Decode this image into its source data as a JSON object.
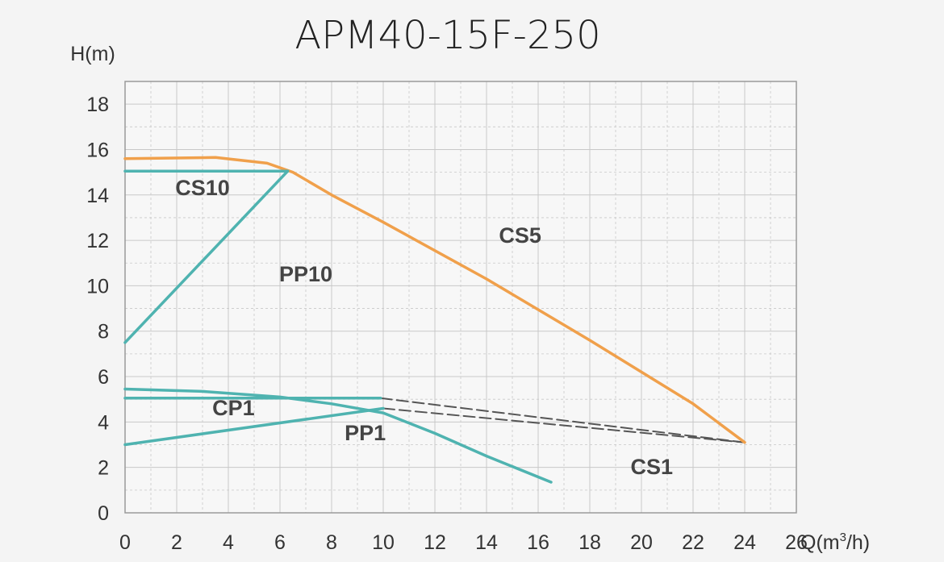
{
  "chart_data": {
    "type": "line",
    "title": "APM40-15F-250",
    "xlabel": "Q(m",
    "xlabel_sup": "3",
    "xlabel_end": "/h)",
    "ylabel": "H(m)",
    "xlim": [
      0,
      26
    ],
    "ylim": [
      0,
      19
    ],
    "xticks": [
      0,
      2,
      4,
      6,
      8,
      10,
      12,
      14,
      16,
      18,
      20,
      22,
      24,
      26
    ],
    "yticks": [
      0,
      2,
      4,
      6,
      8,
      10,
      12,
      14,
      16,
      18
    ],
    "minor_grid_step_x": 1,
    "minor_grid_step_y": 1,
    "grid": true,
    "colors": {
      "orange": "#f0a04b",
      "teal": "#4fb3b0",
      "dashed": "#555555",
      "grid": "#c8c8c8",
      "frame": "#9a9a9a"
    },
    "series": [
      {
        "name": "CS5",
        "color": "orange",
        "style": "solid",
        "points": [
          [
            0,
            15.6
          ],
          [
            3.5,
            15.65
          ],
          [
            5.5,
            15.4
          ],
          [
            6.5,
            15.0
          ],
          [
            8,
            14.0
          ],
          [
            10,
            12.8
          ],
          [
            14,
            10.3
          ],
          [
            18,
            7.6
          ],
          [
            22,
            4.8
          ],
          [
            24,
            3.1
          ]
        ]
      },
      {
        "name": "CS10",
        "color": "teal",
        "style": "solid",
        "points": [
          [
            0,
            15.05
          ],
          [
            6.3,
            15.05
          ]
        ]
      },
      {
        "name": "PP10",
        "color": "teal",
        "style": "solid",
        "points": [
          [
            0,
            7.5
          ],
          [
            6.3,
            15.05
          ]
        ]
      },
      {
        "name": "CP1",
        "color": "teal",
        "style": "solid",
        "points": [
          [
            0,
            5.05
          ],
          [
            9.9,
            5.05
          ]
        ]
      },
      {
        "name": "PP1",
        "color": "teal",
        "style": "solid",
        "points": [
          [
            0,
            3.0
          ],
          [
            10,
            4.6
          ]
        ]
      },
      {
        "name": "CS1",
        "color": "teal",
        "style": "solid",
        "points": [
          [
            0,
            5.45
          ],
          [
            3,
            5.35
          ],
          [
            6,
            5.1
          ],
          [
            8,
            4.8
          ],
          [
            10,
            4.4
          ],
          [
            12,
            3.5
          ],
          [
            14,
            2.5
          ],
          [
            16.5,
            1.35
          ]
        ]
      },
      {
        "name": "CP1-ext",
        "color": "dashed",
        "style": "dashed",
        "points": [
          [
            9.9,
            5.05
          ],
          [
            24,
            3.1
          ]
        ]
      },
      {
        "name": "PP1-ext",
        "color": "dashed",
        "style": "dashed",
        "points": [
          [
            10,
            4.6
          ],
          [
            24,
            3.1
          ]
        ]
      }
    ],
    "labels": [
      {
        "text": "CS10",
        "x": 3.0,
        "y": 14.0
      },
      {
        "text": "PP10",
        "x": 7.0,
        "y": 10.2
      },
      {
        "text": "CS5",
        "x": 15.3,
        "y": 11.9
      },
      {
        "text": "CP1",
        "x": 4.2,
        "y": 4.3
      },
      {
        "text": "PP1",
        "x": 9.3,
        "y": 3.2
      },
      {
        "text": "CS1",
        "x": 20.4,
        "y": 1.7
      }
    ]
  }
}
